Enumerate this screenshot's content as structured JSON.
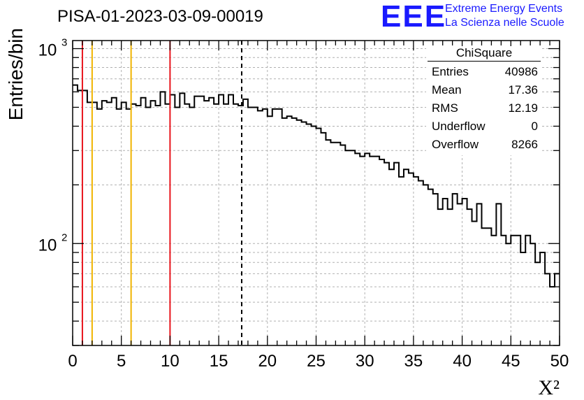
{
  "title": "PISA-01-2023-03-09-00019",
  "logo": {
    "mark": "EEE",
    "line1": "Extreme Energy Events",
    "line2": "La Scienza nelle Scuole"
  },
  "stats_box": {
    "header": "ChiSquare",
    "rows": [
      {
        "label": "Entries",
        "value": "40986"
      },
      {
        "label": "Mean",
        "value": "17.36"
      },
      {
        "label": "RMS",
        "value": "12.19"
      },
      {
        "label": "Underflow",
        "value": "0"
      },
      {
        "label": "Overflow",
        "value": "8266"
      }
    ]
  },
  "chart_data": {
    "type": "bar",
    "title": "PISA-01-2023-03-09-00019",
    "xlabel": "X²",
    "ylabel": "Entries/bin",
    "xlim": [
      0,
      50
    ],
    "ylim": [
      30,
      1100
    ],
    "y_scale": "log",
    "grid": true,
    "x_ticks": [
      0,
      5,
      10,
      15,
      20,
      25,
      30,
      35,
      40,
      45,
      50
    ],
    "y_ticks": [
      {
        "value": 100,
        "label": "10",
        "exp": "2"
      },
      {
        "value": 1000,
        "label": "10",
        "exp": "3"
      }
    ],
    "bin_width": 0.5,
    "values": [
      650,
      610,
      610,
      530,
      530,
      490,
      540,
      530,
      560,
      490,
      530,
      490,
      520,
      510,
      560,
      500,
      540,
      510,
      600,
      520,
      580,
      500,
      590,
      520,
      500,
      570,
      570,
      540,
      560,
      520,
      580,
      520,
      580,
      520,
      510,
      550,
      500,
      500,
      480,
      490,
      450,
      490,
      490,
      440,
      450,
      440,
      430,
      420,
      410,
      400,
      390,
      370,
      340,
      330,
      330,
      320,
      300,
      300,
      290,
      280,
      290,
      280,
      280,
      270,
      260,
      240,
      260,
      220,
      240,
      230,
      220,
      210,
      200,
      190,
      180,
      150,
      170,
      150,
      180,
      160,
      170,
      150,
      130,
      160,
      120,
      120,
      110,
      160,
      110,
      100,
      110,
      110,
      90,
      110,
      100,
      80,
      90,
      70,
      60,
      70
    ],
    "vertical_lines": [
      {
        "x": 1,
        "color": "#e8141c",
        "style": "solid"
      },
      {
        "x": 2,
        "color": "#f0b400",
        "style": "solid"
      },
      {
        "x": 6,
        "color": "#f0b400",
        "style": "solid"
      },
      {
        "x": 10,
        "color": "#e8141c",
        "style": "solid"
      },
      {
        "x": 17.36,
        "color": "#000000",
        "style": "dashed"
      }
    ]
  }
}
